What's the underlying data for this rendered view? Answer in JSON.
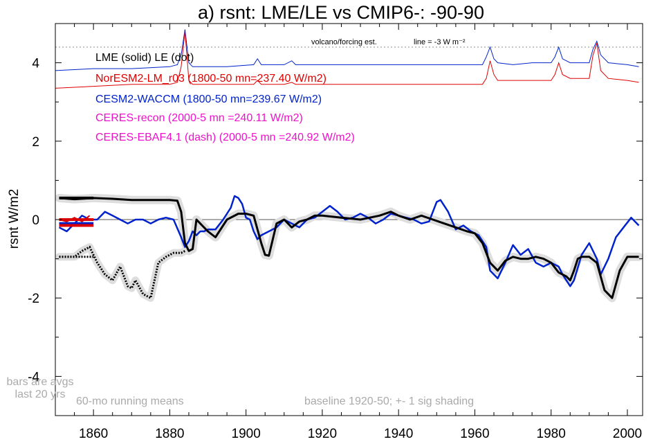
{
  "chart_data": {
    "type": "line",
    "title": "a) rsnt: LME/LE vs CMIP6-: -90-90",
    "ylabel": "rsnt W/m2",
    "xlabel": "",
    "xlim": [
      1850,
      2004
    ],
    "ylim": [
      -5,
      5
    ],
    "x_ticks": [
      1860,
      1880,
      1900,
      1920,
      1940,
      1960,
      1980,
      2000
    ],
    "y_ticks": [
      -4,
      -2,
      0,
      2,
      4
    ],
    "grid": false,
    "legend_position": "top-left",
    "colors": {
      "lme": "#000000",
      "noresm": "#dd0000",
      "cesm": "#0022cc",
      "ceres": "#ee11cc",
      "shade": "#dddddd",
      "foot": "#aaaaaa",
      "refline": "#888888"
    },
    "legend": [
      {
        "text": "LME (solid)   LE (dot)",
        "color": "#000000"
      },
      {
        "text": "NorESM2-LM_r03 (1800-50 mn=237.40 W/m2)",
        "color": "#dd0000"
      },
      {
        "text": "CESM2-WACCM (1800-50 mn=239.67 W/m2)",
        "color": "#0022cc"
      },
      {
        "text": "CERES-recon (2000-5 mn =240.11 W/m2)",
        "color": "#ee11cc"
      },
      {
        "text": "CERES-EBAF4.1 (dash) (2000-5 mn =240.92 W/m2)",
        "color": "#ee11cc"
      }
    ],
    "annotations": {
      "volcano_label": "volcano/forcing est.",
      "line_label": "line = -3 W m⁻²",
      "bars_note_1": "bars are avgs",
      "bars_note_2": "last 20 yrs",
      "running_mean": "60-mo running means",
      "baseline": "baseline 1920-50; +- 1 sig shading"
    },
    "reference_line_y": 4.4,
    "series": [
      {
        "name": "LME (solid)",
        "style": "solid",
        "x": [
          1851,
          1855,
          1860,
          1865,
          1870,
          1875,
          1880,
          1882,
          1883,
          1884,
          1885,
          1886,
          1887,
          1888,
          1890,
          1892,
          1895,
          1898,
          1900,
          1902,
          1904,
          1905,
          1906,
          1908,
          1910,
          1912,
          1914,
          1916,
          1918,
          1920,
          1925,
          1930,
          1935,
          1938,
          1940,
          1943,
          1946,
          1949,
          1952,
          1955,
          1958,
          1960,
          1962,
          1964,
          1966,
          1968,
          1970,
          1972,
          1974,
          1976,
          1978,
          1980,
          1982,
          1984,
          1985,
          1986,
          1987,
          1988,
          1990,
          1992,
          1994,
          1996,
          1998,
          2000,
          2003
        ],
        "y": [
          0.55,
          0.52,
          0.55,
          0.53,
          0.5,
          0.5,
          0.5,
          0.48,
          0.2,
          -0.6,
          -0.8,
          -0.75,
          0.0,
          -0.1,
          -0.3,
          -0.45,
          0.0,
          0.15,
          0.15,
          0.1,
          -0.6,
          -0.9,
          -0.92,
          -0.1,
          0.0,
          -0.2,
          -0.05,
          0.0,
          0.1,
          0.1,
          0.05,
          0.0,
          0.1,
          0.2,
          0.1,
          0.0,
          0.1,
          0.0,
          -0.1,
          -0.2,
          -0.3,
          -0.35,
          -0.6,
          -1.1,
          -1.3,
          -1.05,
          -0.95,
          -1.0,
          -1.0,
          -0.95,
          -1.0,
          -1.1,
          -1.35,
          -1.45,
          -1.55,
          -1.3,
          -1.0,
          -0.95,
          -0.95,
          -1.1,
          -1.8,
          -2.0,
          -1.3,
          -0.95,
          -0.95
        ]
      },
      {
        "name": "LE (dot)",
        "style": "dot",
        "x": [
          1851,
          1855,
          1857,
          1859,
          1861,
          1863,
          1865,
          1867,
          1869,
          1870,
          1871,
          1873,
          1875,
          1877,
          1879,
          1881,
          1883,
          1884
        ],
        "y": [
          -0.95,
          -0.95,
          -0.8,
          -0.7,
          -1.1,
          -1.4,
          -1.55,
          -1.2,
          -1.7,
          -1.75,
          -1.55,
          -1.9,
          -2.0,
          -1.1,
          -0.95,
          -0.85,
          -0.85,
          -0.8
        ]
      },
      {
        "name": "CESM2-WACCM",
        "style": "solid",
        "x": [
          1851,
          1853,
          1855,
          1857,
          1859,
          1861,
          1863,
          1865,
          1867,
          1869,
          1871,
          1873,
          1875,
          1877,
          1879,
          1881,
          1883,
          1884,
          1885,
          1886,
          1887,
          1888,
          1889,
          1890,
          1892,
          1894,
          1896,
          1897,
          1898,
          1899,
          1900,
          1901,
          1902,
          1903,
          1904,
          1906,
          1908,
          1910,
          1912,
          1914,
          1916,
          1918,
          1920,
          1922,
          1924,
          1926,
          1928,
          1930,
          1932,
          1934,
          1936,
          1938,
          1940,
          1942,
          1944,
          1946,
          1948,
          1950,
          1951,
          1953,
          1955,
          1957,
          1959,
          1961,
          1963,
          1964,
          1966,
          1968,
          1970,
          1972,
          1974,
          1976,
          1978,
          1980,
          1982,
          1983,
          1985,
          1986,
          1988,
          1990,
          1992,
          1993,
          1995,
          1997,
          1999,
          2001,
          2003
        ],
        "y": [
          -0.2,
          -0.3,
          -0.1,
          0.1,
          0.0,
          0.0,
          0.2,
          0.1,
          0.0,
          -0.1,
          0.0,
          0.0,
          -0.1,
          0.0,
          0.05,
          0.0,
          -0.45,
          -0.7,
          -0.55,
          -0.3,
          -0.4,
          -0.3,
          -0.3,
          -0.25,
          -0.25,
          0.0,
          0.3,
          0.6,
          0.55,
          0.4,
          0.05,
          0.0,
          -0.3,
          -0.5,
          -0.4,
          -0.3,
          -0.2,
          0.0,
          -0.1,
          -0.2,
          0.0,
          0.05,
          0.2,
          0.35,
          0.2,
          0.0,
          0.05,
          0.15,
          0.05,
          -0.1,
          0.0,
          0.15,
          0.1,
          0.05,
          0.0,
          -0.1,
          -0.05,
          0.45,
          0.5,
          0.2,
          -0.25,
          -0.15,
          -0.3,
          -0.4,
          -0.7,
          -1.3,
          -1.5,
          -1.1,
          -0.65,
          -0.9,
          -0.75,
          -1.1,
          -1.2,
          -1.1,
          -1.2,
          -1.4,
          -1.7,
          -1.55,
          -0.9,
          -0.6,
          -1.0,
          -1.4,
          -1.0,
          -0.45,
          -0.2,
          0.05,
          -0.15
        ]
      }
    ],
    "forcing_series": [
      {
        "name": "CESM2-WACCM forcing",
        "x": [
          1850,
          1860,
          1870,
          1880,
          1882,
          1883,
          1884,
          1885,
          1886,
          1890,
          1895,
          1902,
          1903,
          1904,
          1910,
          1912,
          1913,
          1920,
          1930,
          1940,
          1950,
          1955,
          1962,
          1963,
          1964,
          1965,
          1966,
          1970,
          1975,
          1980,
          1981,
          1982,
          1983,
          1985,
          1990,
          1991,
          1992,
          1993,
          1995,
          2000,
          2003
        ],
        "y": [
          3.8,
          3.85,
          3.85,
          3.9,
          3.95,
          4.2,
          4.85,
          4.0,
          3.9,
          3.9,
          3.9,
          3.95,
          4.1,
          3.95,
          3.95,
          4.05,
          3.95,
          3.95,
          3.95,
          3.95,
          3.95,
          3.95,
          3.95,
          4.15,
          4.4,
          4.1,
          4.0,
          3.95,
          4.0,
          4.0,
          4.15,
          4.4,
          4.1,
          4.0,
          4.0,
          4.35,
          4.55,
          4.2,
          4.0,
          3.95,
          3.9
        ]
      },
      {
        "name": "NorESM2-LM forcing",
        "x": [
          1850,
          1860,
          1870,
          1880,
          1882,
          1883,
          1884,
          1885,
          1886,
          1890,
          1895,
          1902,
          1903,
          1904,
          1910,
          1912,
          1913,
          1920,
          1930,
          1940,
          1950,
          1955,
          1962,
          1963,
          1964,
          1965,
          1966,
          1970,
          1975,
          1980,
          1981,
          1982,
          1983,
          1985,
          1990,
          1991,
          1992,
          1993,
          1995,
          2000,
          2003
        ],
        "y": [
          3.35,
          3.4,
          3.45,
          3.45,
          3.5,
          3.9,
          4.8,
          3.55,
          3.45,
          3.45,
          3.45,
          3.45,
          3.55,
          3.45,
          3.45,
          3.5,
          3.45,
          3.45,
          3.45,
          3.45,
          3.45,
          3.45,
          3.45,
          3.6,
          4.05,
          3.7,
          3.55,
          3.55,
          3.55,
          3.55,
          3.7,
          4.0,
          3.7,
          3.6,
          3.6,
          4.2,
          4.5,
          3.8,
          3.6,
          3.55,
          3.5
        ]
      }
    ],
    "bars": [
      {
        "name": "LME avg",
        "color": "#000000",
        "y": 0.55
      },
      {
        "name": "NorESM2-LM avg",
        "color": "#dd0000",
        "y": 0.0
      },
      {
        "name": "CESM2-WACCM avg",
        "color": "#0022cc",
        "y": -0.1
      },
      {
        "name": "NorESM2-LM avg 2",
        "color": "#dd0000",
        "y": -0.15
      }
    ]
  }
}
